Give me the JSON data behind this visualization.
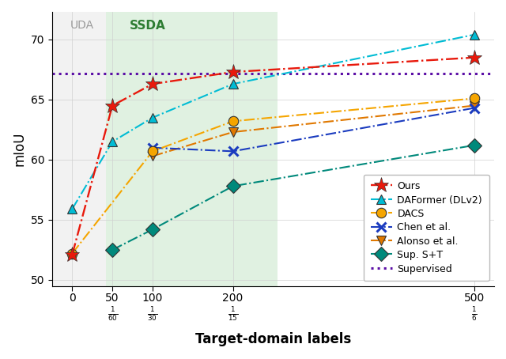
{
  "x_values": [
    0,
    50,
    100,
    200,
    500
  ],
  "ours": [
    52.1,
    64.5,
    66.3,
    67.3,
    68.5
  ],
  "daformer": [
    55.9,
    61.5,
    63.5,
    66.3,
    70.4
  ],
  "dacs": [
    52.2,
    null,
    60.7,
    63.2,
    65.1
  ],
  "chen": [
    null,
    null,
    61.0,
    60.7,
    64.3
  ],
  "alonso": [
    null,
    null,
    60.3,
    62.3,
    64.5
  ],
  "sup_st": [
    null,
    52.5,
    54.2,
    57.8,
    61.2
  ],
  "supervised": 67.2,
  "ours_color": "#e8190c",
  "daformer_color": "#00bcd4",
  "dacs_color": "#f5a500",
  "chen_color": "#1a3bbf",
  "alonso_color": "#e07800",
  "sup_st_color": "#00897b",
  "supervised_color": "#5b0ea6",
  "ylim": [
    49.5,
    72.3
  ],
  "xlim": [
    -25,
    525
  ],
  "xlabel": "Target-domain labels",
  "ylabel": "mIoU"
}
